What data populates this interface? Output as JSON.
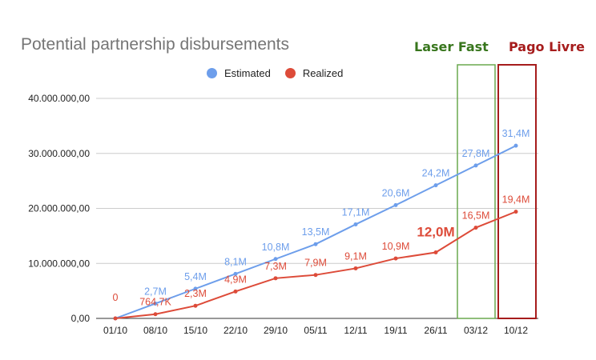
{
  "chart_data": {
    "type": "line",
    "title": "Potential partnership disbursements",
    "categories": [
      "01/10",
      "08/10",
      "15/10",
      "22/10",
      "29/10",
      "05/11",
      "12/11",
      "19/11",
      "26/11",
      "03/12",
      "10/12"
    ],
    "series": [
      {
        "name": "Estimated",
        "color": "#6d9eeb",
        "values": [
          0,
          2700000,
          5400000,
          8100000,
          10800000,
          13500000,
          17100000,
          20600000,
          24200000,
          27800000,
          31400000
        ],
        "labels": [
          "",
          "2,7M",
          "5,4M",
          "8,1M",
          "10,8M",
          "13,5M",
          "17,1M",
          "20,6M",
          "24,2M",
          "27,8M",
          "31,4M"
        ]
      },
      {
        "name": "Realized",
        "color": "#dd4b39",
        "values": [
          0,
          764700,
          2300000,
          4900000,
          7300000,
          7900000,
          9100000,
          10900000,
          12000000,
          16500000,
          19400000
        ],
        "labels": [
          "0",
          "764,7K",
          "2,3M",
          "4,9M",
          "7,3M",
          "7,9M",
          "9,1M",
          "10,9M",
          "12,0M",
          "16,5M",
          "19,4M"
        ]
      }
    ],
    "y_ticks": [
      "0,00",
      "10.000.000,00",
      "20.000.000,00",
      "30.000.000,00",
      "40.000.000,00"
    ],
    "ylim": [
      0,
      40000000
    ],
    "grid": true,
    "legend": "top",
    "annotations": [
      {
        "text": "Laser Fast",
        "color": "#38761d",
        "category": "03/12"
      },
      {
        "text": "Pago Livre",
        "color": "#a61c1c",
        "category": "10/12"
      }
    ]
  }
}
